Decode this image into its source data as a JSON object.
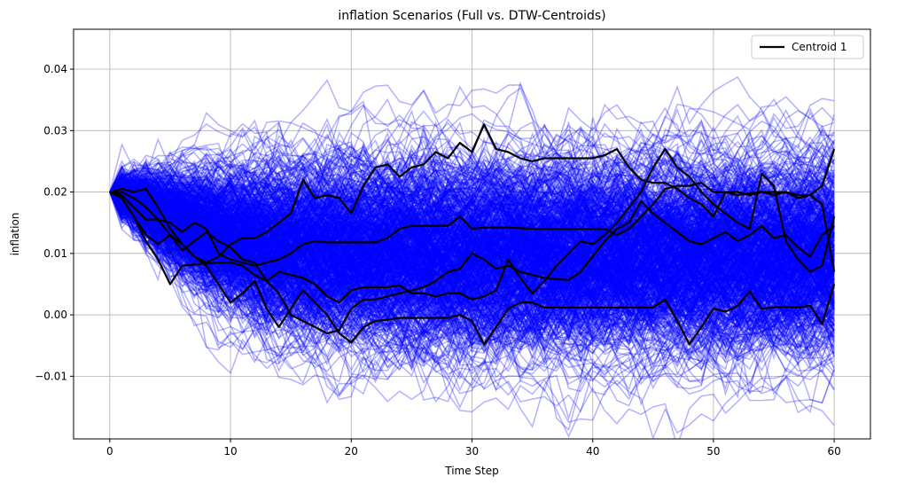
{
  "chart_data": {
    "type": "line",
    "title": "inflation Scenarios (Full vs. DTW-Centroids)",
    "xlabel": "Time Step",
    "ylabel": "inflation",
    "xlim": [
      -3,
      63
    ],
    "ylim": [
      -0.0202,
      0.0465
    ],
    "xticks": [
      0,
      10,
      20,
      30,
      40,
      50,
      60
    ],
    "xtick_labels": [
      "0",
      "10",
      "20",
      "30",
      "40",
      "50",
      "60"
    ],
    "yticks": [
      -0.01,
      0.0,
      0.01,
      0.02,
      0.03,
      0.04
    ],
    "ytick_labels": [
      "−0.01",
      "0.00",
      "0.01",
      "0.02",
      "0.03",
      "0.04"
    ],
    "grid": true,
    "legend_position": "top-right",
    "background_scenarios": {
      "color": "#0000ff",
      "opacity": 0.3,
      "start_value": 0.02,
      "steps": 60,
      "band_center_early": 0.019,
      "band_center_late": 0.01,
      "band_spread_late": 0.022
    },
    "series": [
      {
        "name": "Centroid 1",
        "color": "#000000",
        "x": [
          0,
          1,
          2,
          3,
          4,
          5,
          6,
          7,
          8,
          9,
          10,
          11,
          12,
          13,
          14,
          15,
          16,
          17,
          18,
          19,
          20,
          21,
          22,
          23,
          24,
          25,
          26,
          27,
          28,
          29,
          30,
          31,
          32,
          33,
          34,
          35,
          36,
          37,
          38,
          39,
          40,
          41,
          42,
          43,
          44,
          45,
          46,
          47,
          48,
          49,
          50,
          51,
          52,
          53,
          54,
          55,
          56,
          57,
          58,
          59,
          60
        ],
        "values": [
          0.02,
          0.019,
          0.016,
          0.013,
          0.0115,
          0.013,
          0.0105,
          0.012,
          0.0135,
          0.012,
          0.011,
          0.009,
          0.0085,
          0.0055,
          0.0035,
          0.0,
          -0.001,
          -0.002,
          -0.003,
          -0.0025,
          0.001,
          0.0025,
          0.0025,
          0.003,
          0.0035,
          0.004,
          0.0045,
          0.0055,
          0.007,
          0.0075,
          0.01,
          0.009,
          0.0075,
          0.008,
          0.007,
          0.0065,
          0.006,
          0.0058,
          0.0057,
          0.007,
          0.0095,
          0.012,
          0.014,
          0.015,
          0.0185,
          0.0165,
          0.015,
          0.0135,
          0.012,
          0.0115,
          0.0125,
          0.0135,
          0.012,
          0.013,
          0.0145,
          0.0125,
          0.013,
          0.011,
          0.0095,
          0.013,
          0.0145
        ]
      },
      {
        "name": "",
        "color": "#000000",
        "x": [
          0,
          1,
          2,
          3,
          4,
          5,
          6,
          7,
          8,
          9,
          10,
          11,
          12,
          13,
          14,
          15,
          16,
          17,
          18,
          19,
          20,
          21,
          22,
          23,
          24,
          25,
          26,
          27,
          28,
          29,
          30,
          31,
          32,
          33,
          34,
          35,
          36,
          37,
          38,
          39,
          40,
          41,
          42,
          43,
          44,
          45,
          46,
          47,
          48,
          49,
          50,
          51,
          52,
          53,
          54,
          55,
          56,
          57,
          58,
          59,
          60
        ],
        "values": [
          0.02,
          0.0205,
          0.02,
          0.0205,
          0.0175,
          0.014,
          0.0115,
          0.0095,
          0.0085,
          0.0095,
          0.0115,
          0.0125,
          0.0125,
          0.0135,
          0.015,
          0.0165,
          0.022,
          0.019,
          0.0195,
          0.019,
          0.0165,
          0.021,
          0.024,
          0.0245,
          0.0225,
          0.024,
          0.0245,
          0.0265,
          0.0255,
          0.028,
          0.0265,
          0.031,
          0.027,
          0.0265,
          0.0255,
          0.025,
          0.0255,
          0.0255,
          0.0255,
          0.0255,
          0.0255,
          0.026,
          0.027,
          0.024,
          0.022,
          0.0215,
          0.0215,
          0.0205,
          0.019,
          0.018,
          0.016,
          0.02,
          0.02,
          0.0195,
          0.02,
          0.0195,
          0.02,
          0.019,
          0.0195,
          0.021,
          0.027
        ]
      },
      {
        "name": "",
        "color": "#000000",
        "x": [
          0,
          1,
          2,
          3,
          4,
          5,
          6,
          7,
          8,
          9,
          10,
          11,
          12,
          13,
          14,
          15,
          16,
          17,
          18,
          19,
          20,
          21,
          22,
          23,
          24,
          25,
          26,
          27,
          28,
          29,
          30,
          31,
          32,
          33,
          34,
          35,
          36,
          37,
          38,
          39,
          40,
          41,
          42,
          43,
          44,
          45,
          46,
          47,
          48,
          49,
          50,
          51,
          52,
          53,
          54,
          55,
          56,
          57,
          58,
          59,
          60
        ],
        "values": [
          0.02,
          0.0195,
          0.0175,
          0.0155,
          0.0155,
          0.015,
          0.0135,
          0.015,
          0.014,
          0.01,
          0.009,
          0.0085,
          0.008,
          0.0085,
          0.009,
          0.01,
          0.0115,
          0.012,
          0.0118,
          0.0118,
          0.0118,
          0.0118,
          0.0118,
          0.0125,
          0.014,
          0.0145,
          0.0145,
          0.0145,
          0.0145,
          0.016,
          0.014,
          0.0142,
          0.0142,
          0.0142,
          0.0141,
          0.014,
          0.014,
          0.014,
          0.014,
          0.014,
          0.014,
          0.014,
          0.013,
          0.014,
          0.016,
          0.018,
          0.0205,
          0.021,
          0.021,
          0.0215,
          0.02,
          0.02,
          0.0195,
          0.0198,
          0.02,
          0.02,
          0.02,
          0.0195,
          0.0195,
          0.018,
          0.007
        ]
      },
      {
        "name": "",
        "color": "#000000",
        "x": [
          0,
          1,
          2,
          3,
          4,
          5,
          6,
          7,
          8,
          9,
          10,
          11,
          12,
          13,
          14,
          15,
          16,
          17,
          18,
          19,
          20,
          21,
          22,
          23,
          24,
          25,
          26,
          27,
          28,
          29,
          30,
          31,
          32,
          33,
          34,
          35,
          36,
          37,
          38,
          39,
          40,
          41,
          42,
          43,
          44,
          45,
          46,
          47,
          48,
          49,
          50,
          51,
          52,
          53,
          54,
          55,
          56,
          57,
          58,
          59,
          60
        ],
        "values": [
          0.02,
          0.019,
          0.016,
          0.012,
          0.009,
          0.005,
          0.008,
          0.0082,
          0.0084,
          0.0085,
          0.0085,
          0.008,
          0.0065,
          0.0055,
          0.007,
          0.0065,
          0.006,
          0.005,
          0.003,
          0.002,
          0.004,
          0.0045,
          0.0045,
          0.0045,
          0.0048,
          0.0035,
          0.0035,
          0.003,
          0.0035,
          0.0035,
          0.0025,
          0.003,
          0.004,
          0.009,
          0.006,
          0.0035,
          0.0055,
          0.008,
          0.01,
          0.012,
          0.0115,
          0.013,
          0.015,
          0.0175,
          0.02,
          0.024,
          0.027,
          0.024,
          0.0225,
          0.02,
          0.018,
          0.0165,
          0.015,
          0.014,
          0.023,
          0.021,
          0.012,
          0.009,
          0.007,
          0.008,
          0.016
        ]
      },
      {
        "name": "",
        "color": "#000000",
        "x": [
          0,
          1,
          2,
          3,
          4,
          5,
          6,
          7,
          8,
          9,
          10,
          11,
          12,
          13,
          14,
          15,
          16,
          17,
          18,
          19,
          20,
          21,
          22,
          23,
          24,
          25,
          26,
          27,
          28,
          29,
          30,
          31,
          32,
          33,
          34,
          35,
          36,
          37,
          38,
          39,
          40,
          41,
          42,
          43,
          44,
          45,
          46,
          47,
          48,
          49,
          50,
          51,
          52,
          53,
          54,
          55,
          56,
          57,
          58,
          59,
          60
        ],
        "values": [
          0.02,
          0.02,
          0.019,
          0.0175,
          0.0155,
          0.013,
          0.0115,
          0.0095,
          0.008,
          0.005,
          0.002,
          0.0035,
          0.0055,
          0.001,
          -0.002,
          0.001,
          0.004,
          0.002,
          0.0,
          -0.003,
          -0.0045,
          -0.002,
          -0.001,
          -0.0008,
          -0.0005,
          -0.0005,
          -0.0005,
          -0.0005,
          -0.0005,
          0.0,
          -0.001,
          -0.0048,
          -0.002,
          0.001,
          0.002,
          0.002,
          0.0012,
          0.0012,
          0.0012,
          0.0012,
          0.0012,
          0.0012,
          0.0012,
          0.0012,
          0.0012,
          0.0012,
          0.0025,
          -0.001,
          -0.0048,
          -0.002,
          0.001,
          0.0005,
          0.0015,
          0.0038,
          0.001,
          0.0012,
          0.0013,
          0.0012,
          0.0015,
          -0.0015,
          0.005
        ]
      }
    ]
  }
}
